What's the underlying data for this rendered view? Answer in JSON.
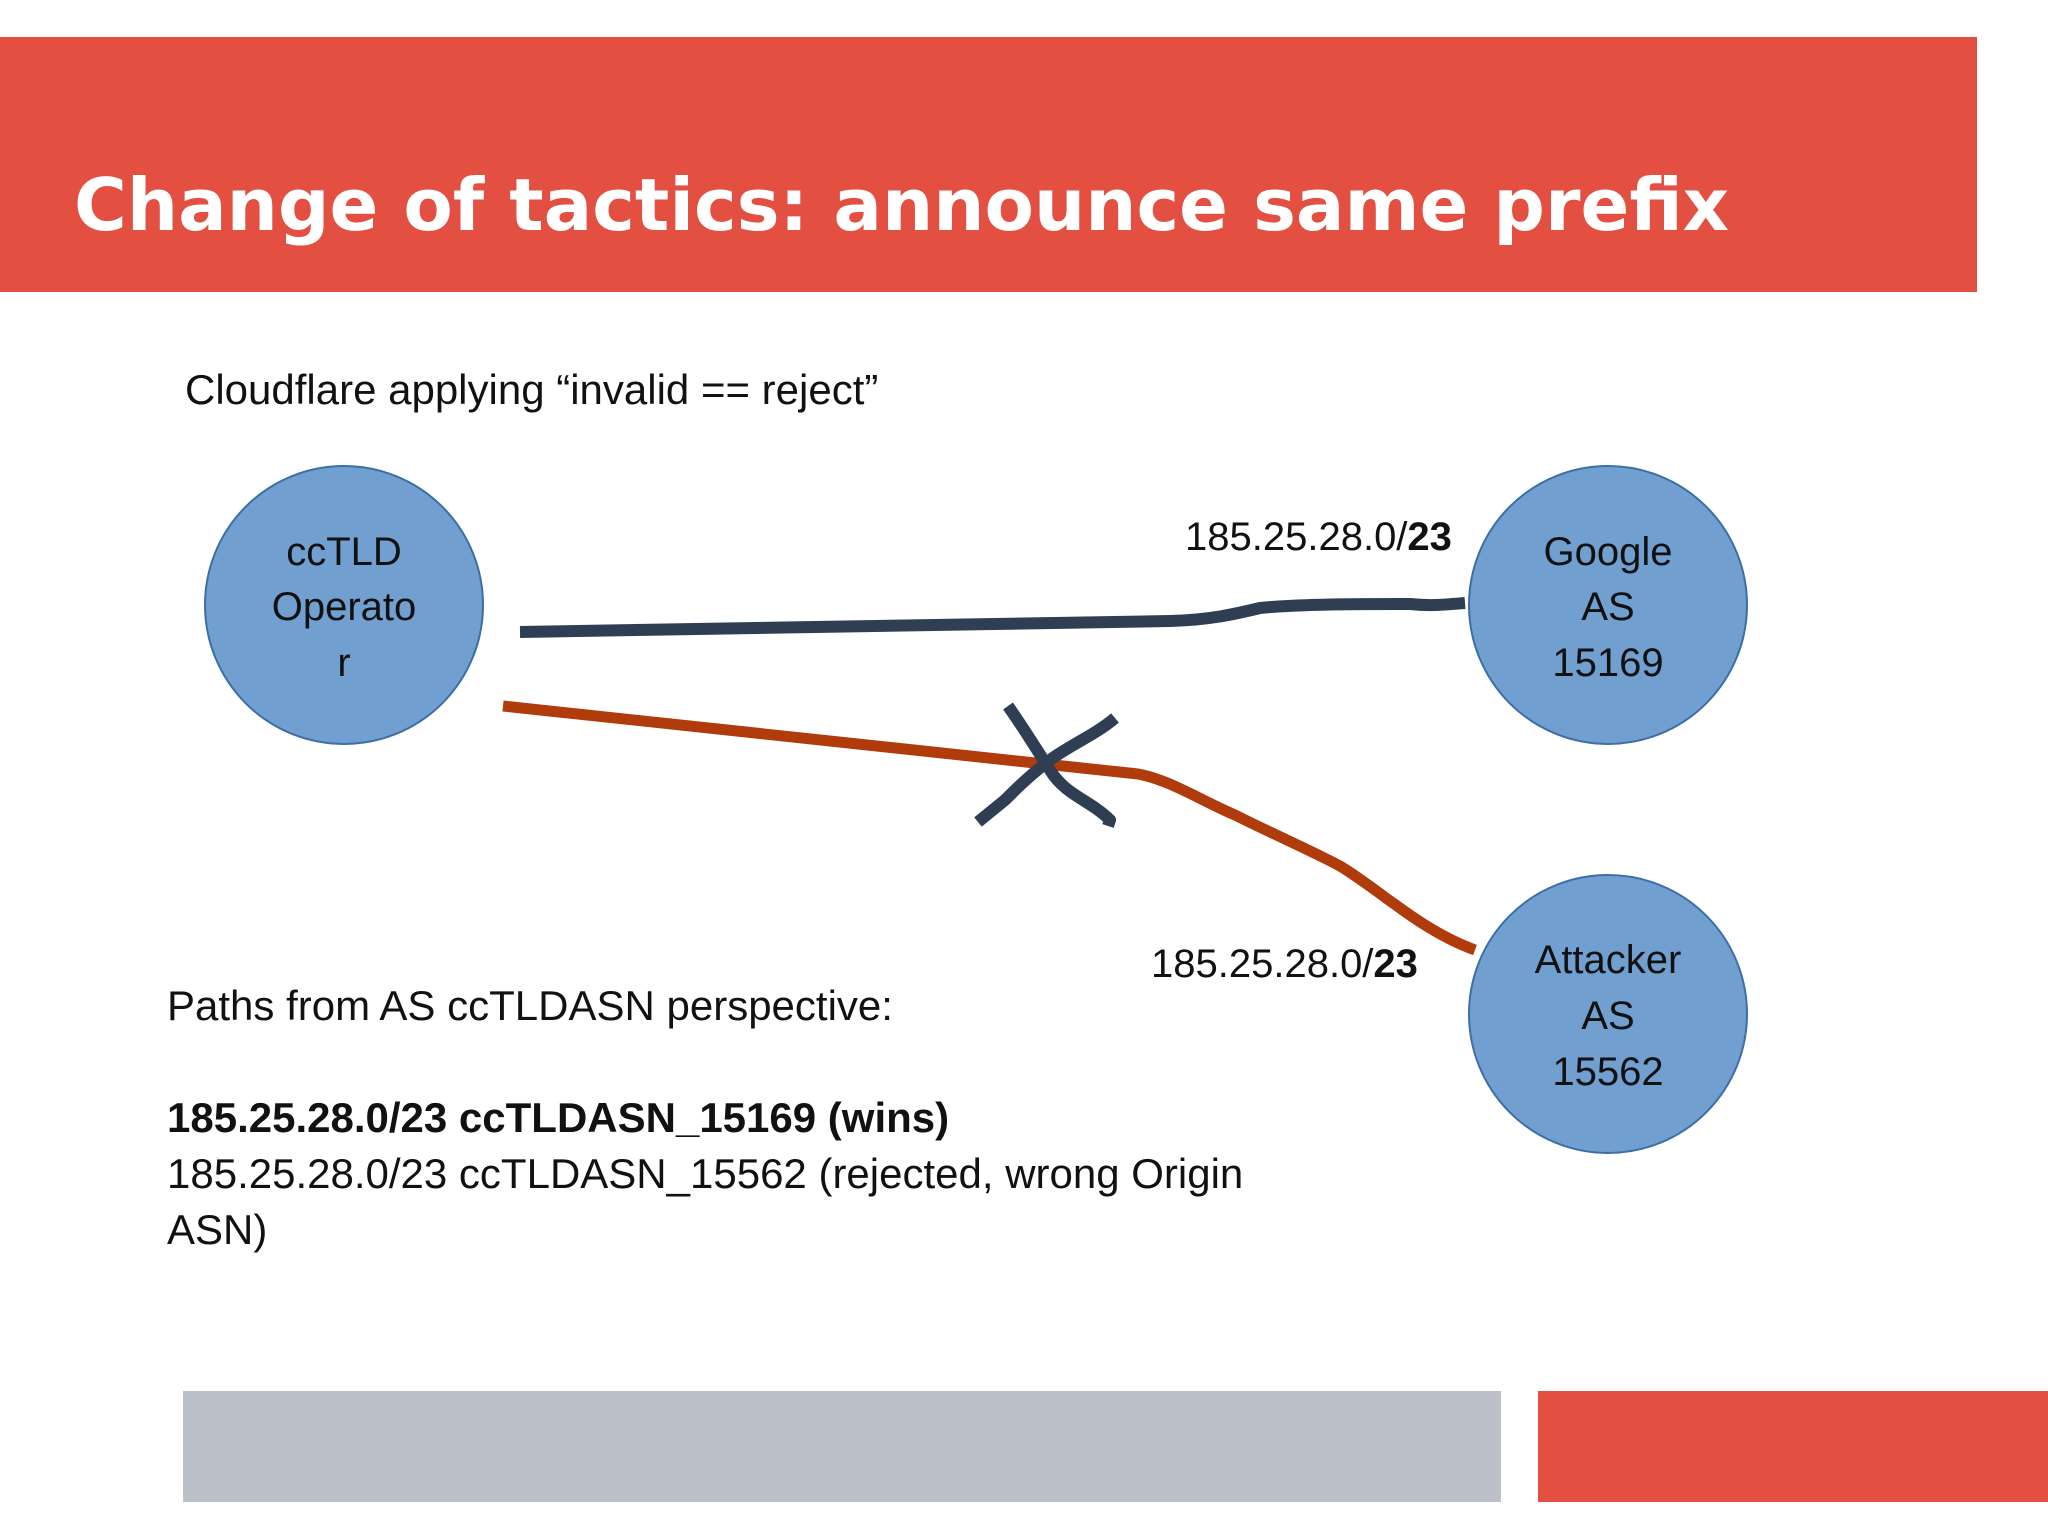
{
  "slide": {
    "title": "Change of tactics: announce same prefix",
    "subtitle": "Cloudflare applying “invalid == reject”"
  },
  "nodes": {
    "cctld": {
      "lines": [
        "ccTLD",
        "Operato",
        "r"
      ]
    },
    "google": {
      "lines": [
        "Google",
        "AS",
        "15169"
      ]
    },
    "attacker": {
      "lines": [
        "Attacker",
        "AS",
        "15562"
      ]
    }
  },
  "links": {
    "google": {
      "prefix": "185.25.28.0/",
      "mask": "23",
      "status": "accepted"
    },
    "attacker": {
      "prefix": "185.25.28.0/",
      "mask": "23",
      "status": "rejected"
    }
  },
  "paths": {
    "heading": "Paths from AS ccTLDASN perspective:",
    "winner": "185.25.28.0/23 ccTLDASN_15169 (wins)",
    "rejected": "185.25.28.0/23 ccTLDASN_15562 (rejected, wrong Origin ASN)"
  },
  "colors": {
    "accent_red": "#e34f40",
    "node_fill": "#709fd0",
    "node_stroke": "#3d6ea8",
    "valid_path": "#2f3e52",
    "invalid_path": "#b03c0c",
    "footer_gray": "#bcc1c9"
  }
}
